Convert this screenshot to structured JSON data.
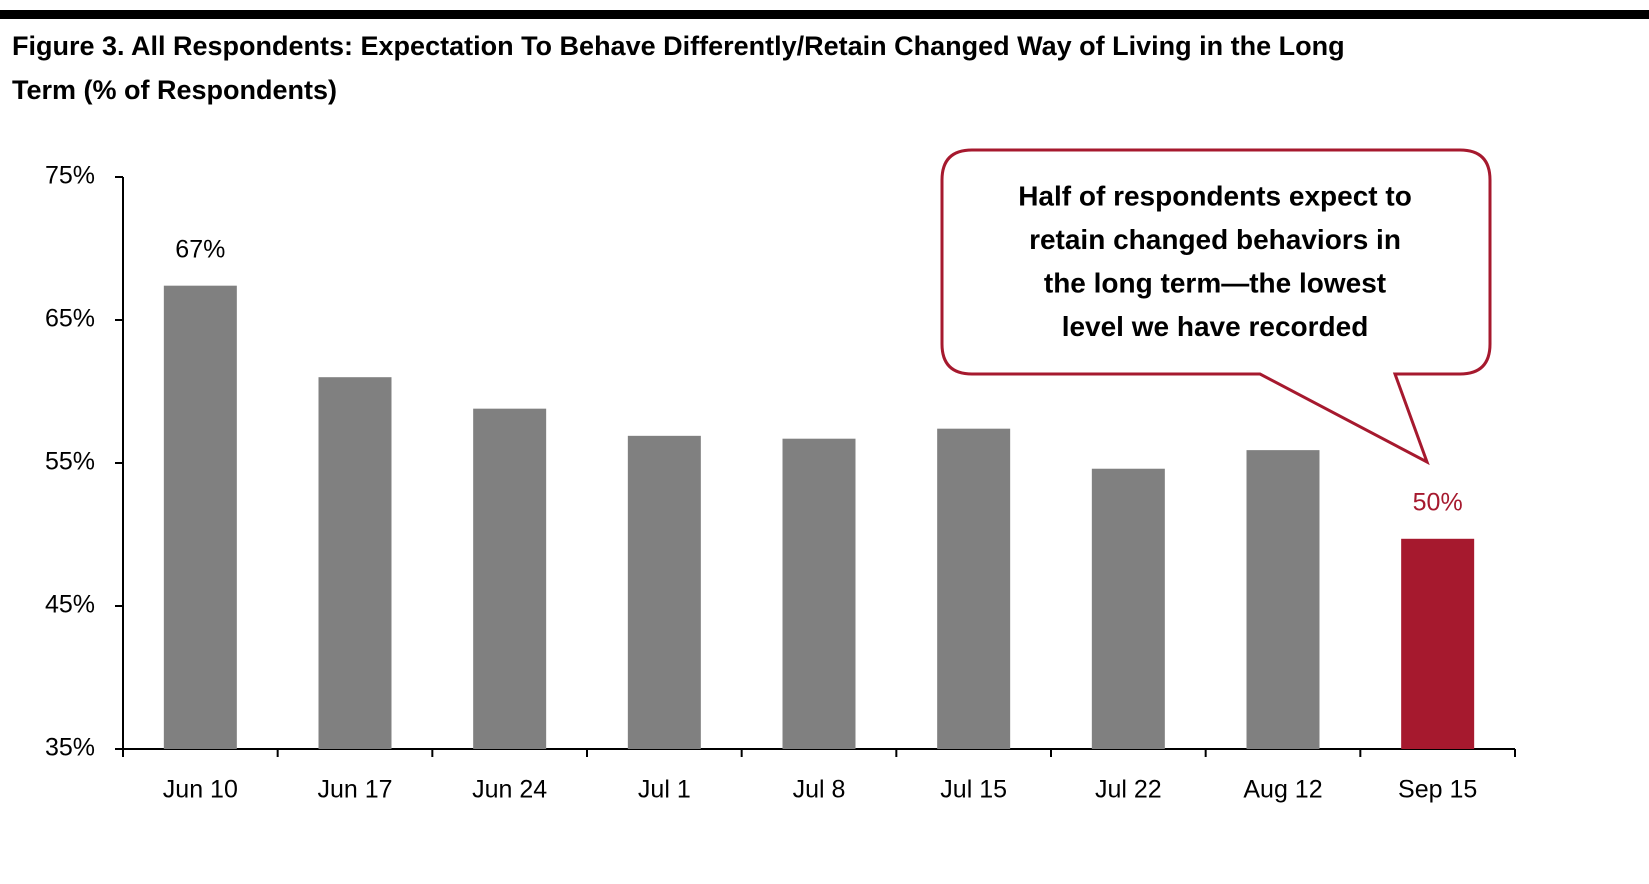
{
  "chart_data": {
    "type": "bar",
    "title": "Figure 3. All Respondents: Expectation To Behave Differently/Retain Changed Way of Living in the Long",
    "title_line2": "Term (% of Respondents)",
    "categories": [
      "Jun 10",
      "Jun 17",
      "Jun 24",
      "Jul 1",
      "Jul 8",
      "Jul 15",
      "Jul 22",
      "Aug 12",
      "Sep 15"
    ],
    "values": [
      67.4,
      61.0,
      58.8,
      56.9,
      56.7,
      57.4,
      54.6,
      55.9,
      49.7
    ],
    "value_labels": [
      "67%",
      null,
      null,
      null,
      null,
      null,
      null,
      null,
      "50%"
    ],
    "colors": [
      "#808080",
      "#808080",
      "#808080",
      "#808080",
      "#808080",
      "#808080",
      "#808080",
      "#808080",
      "#a6192e"
    ],
    "label_colors": [
      "#000000",
      null,
      null,
      null,
      null,
      null,
      null,
      null,
      "#a6192e"
    ],
    "ylim": [
      35,
      75
    ],
    "yticks": [
      {
        "value": 35,
        "label": "35%"
      },
      {
        "value": 45,
        "label": "45%"
      },
      {
        "value": 55,
        "label": "55%"
      },
      {
        "value": 65,
        "label": "65%"
      },
      {
        "value": 75,
        "label": "75%"
      }
    ],
    "grid": false,
    "annotation": [
      "Half of respondents expect to",
      "retain changed behaviors in",
      "the long term—the lowest",
      "level we have recorded"
    ]
  }
}
